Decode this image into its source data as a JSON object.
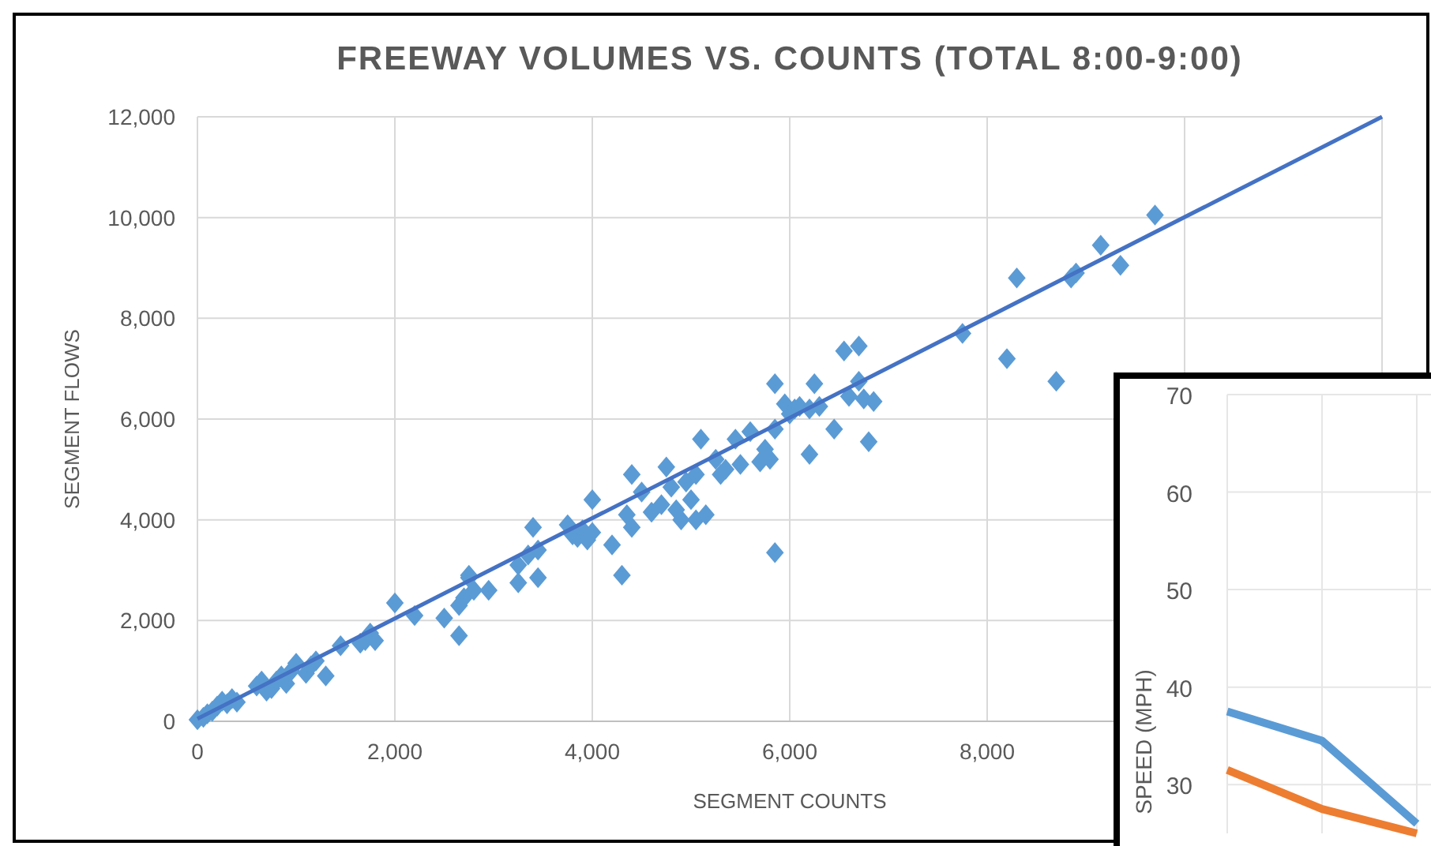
{
  "chart_data": [
    {
      "type": "scatter",
      "title": "FREEWAY VOLUMES VS. COUNTS (TOTAL 8:00-9:00)",
      "xlabel": "SEGMENT COUNTS",
      "ylabel": "SEGMENT FLOWS",
      "xlim": [
        0,
        12000
      ],
      "ylim": [
        0,
        12000
      ],
      "xticks": [
        {
          "value": 0,
          "label": "0"
        },
        {
          "value": 2000,
          "label": "2,000"
        },
        {
          "value": 4000,
          "label": "4,000"
        },
        {
          "value": 6000,
          "label": "6,000"
        },
        {
          "value": 8000,
          "label": "8,000"
        },
        {
          "value": 10000,
          "label": null
        },
        {
          "value": 12000,
          "label": null
        }
      ],
      "yticks": [
        {
          "value": 0,
          "label": "0"
        },
        {
          "value": 2000,
          "label": "2,000"
        },
        {
          "value": 4000,
          "label": "4,000"
        },
        {
          "value": 6000,
          "label": "6,000"
        },
        {
          "value": 8000,
          "label": "8,000"
        },
        {
          "value": 10000,
          "label": "10,000"
        },
        {
          "value": 12000,
          "label": "12,000"
        }
      ],
      "grid": true,
      "series": [
        {
          "marker": "diamond",
          "color": "#5b9bd5",
          "x": [
            0,
            60,
            100,
            150,
            200,
            250,
            300,
            350,
            400,
            600,
            650,
            700,
            750,
            800,
            850,
            900,
            950,
            1000,
            1100,
            1150,
            1200,
            1300,
            1450,
            1650,
            1700,
            1750,
            1800,
            2000,
            2200,
            2500,
            2650,
            2650,
            2700,
            2750,
            2800,
            2750,
            2950,
            3250,
            3250,
            3350,
            3400,
            3450,
            3450,
            3750,
            3800,
            3850,
            3900,
            3950,
            4000,
            4000,
            4200,
            4300,
            4350,
            4400,
            4400,
            4500,
            4600,
            4700,
            4750,
            4800,
            4850,
            4900,
            4950,
            5000,
            5050,
            5050,
            5100,
            5150,
            5250,
            5300,
            5350,
            5450,
            5500,
            5600,
            5700,
            5750,
            5800,
            5850,
            5850,
            5850,
            5950,
            6000,
            6050,
            6100,
            6200,
            6200,
            6250,
            6300,
            6450,
            6550,
            6600,
            6700,
            6700,
            6750,
            6800,
            6850,
            7750,
            8200,
            8300,
            8700,
            8850,
            8900,
            9150,
            9350,
            9700
          ],
          "values": [
            30,
            80,
            150,
            200,
            300,
            400,
            350,
            450,
            380,
            700,
            800,
            600,
            650,
            800,
            900,
            750,
            1000,
            1150,
            950,
            1100,
            1200,
            900,
            1500,
            1550,
            1600,
            1750,
            1600,
            2350,
            2100,
            2050,
            1700,
            2300,
            2450,
            2850,
            2600,
            2900,
            2600,
            2750,
            3100,
            3300,
            3850,
            2850,
            3400,
            3900,
            3700,
            3650,
            3800,
            3600,
            4400,
            3750,
            3500,
            2900,
            4100,
            4900,
            3850,
            4550,
            4150,
            4300,
            5050,
            4650,
            4200,
            4000,
            4750,
            4400,
            4900,
            4000,
            5600,
            4100,
            5200,
            4900,
            5000,
            5600,
            5100,
            5750,
            5150,
            5400,
            5200,
            3350,
            5800,
            6700,
            6300,
            6100,
            6200,
            6250,
            5300,
            6200,
            6700,
            6250,
            5800,
            7350,
            6450,
            6750,
            7450,
            6400,
            5550,
            6350,
            7700,
            7200,
            8800,
            6750,
            8800,
            8900,
            9450,
            9050,
            10050
          ]
        },
        {
          "type": "line",
          "color": "#4472c4",
          "x": [
            0,
            12000
          ],
          "values": [
            50,
            12000
          ]
        }
      ]
    },
    {
      "type": "line",
      "ylabel": "SPEED (MPH)",
      "categories": [
        null,
        null,
        null
      ],
      "ylim": [
        25,
        70
      ],
      "yticks": [
        30,
        40,
        50,
        60,
        70
      ],
      "grid": true,
      "series": [
        {
          "color": "#5b9bd5",
          "values": [
            37.5,
            34.5,
            26
          ]
        },
        {
          "color": "#ed7d31",
          "values": [
            31.5,
            27.5,
            25
          ]
        }
      ]
    }
  ]
}
